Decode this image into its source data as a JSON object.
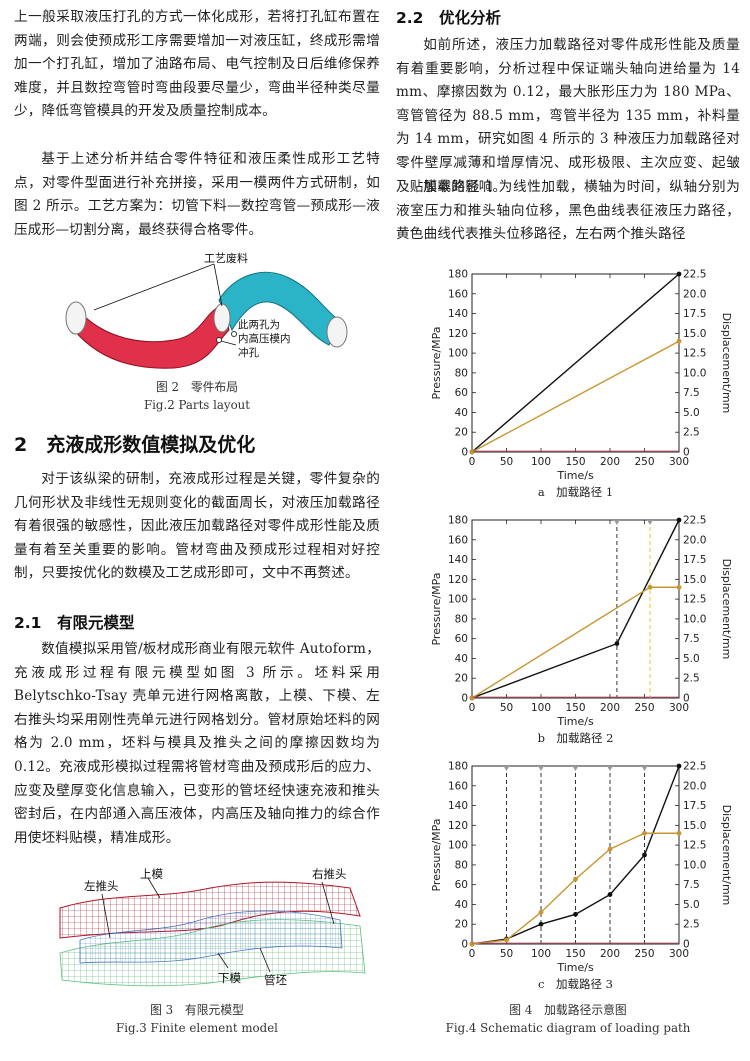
{
  "left": {
    "intro_para": "上一般采取液压打孔的方式一体化成形，若将打孔缸布置在两端，则会使预成形工序需要增加一对液压缸，终成形需增加一个打孔缸，增加了油路布局、电气控制及日后维修保养难度，并且数控弯管时弯曲段要尽量少，弯曲半径种类尽量少，降低弯管模具的开发及质量控制成本。",
    "para2": "基于上述分析并结合零件特征和液压柔性成形工艺特点，对零件型面进行补充拼接，采用一模两件方式研制，如图 2 所示。工艺方案为：切管下料—数控弯管—预成形—液压成形—切割分离，最终获得合格零件。",
    "fig2": {
      "label_waste": "工艺废料",
      "label_holes_1": "此两孔为",
      "label_holes_2": "内高压模内",
      "label_holes_3": "冲孔",
      "caption_cn": "图 2　零件布局",
      "caption_en": "Fig.2 Parts layout"
    },
    "section2_title": "2　充液成形数值模拟及优化",
    "section2_para": "对于该纵梁的研制，充液成形过程是关键，零件复杂的几何形状及非线性无规则变化的截面周长，对液压加载路径有着很强的敏感性，因此液压加载路径对零件成形性能及质量有着至关重要的影响。管材弯曲及预成形过程相对好控制，只要按优化的数模及工艺成形即可，文中不再赘述。",
    "sub21_title": "2.1　有限元模型",
    "sub21_para": "数值模拟采用管/板材成形商业有限元软件 Autoform，充液成形过程有限元模型如图 3 所示。坯料采用 Belytschko-Tsay 壳单元进行网格离散，上模、下模、左右推头均采用刚性壳单元进行网格划分。管材原始坯料的网格为 2.0 mm，坯料与模具及推头之间的摩擦因数均为 0.12。充液成形模拟过程需将管材弯曲及预成形后的应力、应变及壁厚变化信息输入，已变形的管坯经快速充液和推头密封后，在内部通入高压液体，内高压及轴向推力的综合作用使坯料贴模，精准成形。",
    "fig3": {
      "label_upper": "上模",
      "label_right": "右推头",
      "label_left": "左推头",
      "label_lower": "下模",
      "label_tube": "管坯",
      "caption_cn": "图 3　有限元模型",
      "caption_en": "Fig.3 Finite element model"
    }
  },
  "right": {
    "sub22_title": "2.2　优化分析",
    "para1": "如前所述，液压力加载路径对零件成形性能及质量有着重要影响，分析过程中保证端头轴向进给量为 14 mm、摩擦因数为 0.12，最大胀形压力为 180 MPa、弯管管径为 88.5 mm，弯管半径为 135 mm，补料量为 14 mm，研究如图 4 所示的 3 种液压力加载路径对零件壁厚减薄和增厚情况、成形极限、主次应变、起皱及贴膜率的影响。",
    "para2": "加载路径 1 为线性加载，横轴为时间，纵轴分别为液室压力和推头轴向位移，黑色曲线表征液压力路径，黄色曲线代表推头位移路径，左右两个推头路径",
    "fig4_caption_cn": "图 4　加载路径示意图",
    "fig4_caption_en": "Fig.4 Schematic diagram of loading path"
  },
  "chart_data": [
    {
      "type": "line",
      "subcaption": "a　加载路径 1",
      "xlabel": "Time/s",
      "ylabel": "Pressure/MPa",
      "y2label": "Displacement/mm",
      "xlim": [
        0,
        300
      ],
      "ylim": [
        0,
        180
      ],
      "y2lim": [
        0,
        22.5
      ],
      "xticks": [
        "0",
        "50",
        "100",
        "150",
        "200",
        "250",
        "300"
      ],
      "yticks": [
        "0",
        "20",
        "40",
        "60",
        "80",
        "100",
        "120",
        "140",
        "160",
        "180"
      ],
      "y2ticks": [
        "0",
        "2.5",
        "5.0",
        "7.5",
        "10.0",
        "12.5",
        "15.0",
        "17.5",
        "20.0",
        "22.5"
      ],
      "series": [
        {
          "color": "#111111",
          "axis": "left",
          "x": [
            0,
            300
          ],
          "y": [
            0,
            180
          ]
        },
        {
          "color": "#c8962e",
          "axis": "right",
          "x": [
            0,
            300
          ],
          "y": [
            0,
            14
          ]
        }
      ],
      "vlines": []
    },
    {
      "type": "line",
      "subcaption": "b　加载路径 2",
      "xlabel": "Time/s",
      "ylabel": "Pressure/MPa",
      "y2label": "Displacement/mm",
      "xlim": [
        0,
        300
      ],
      "ylim": [
        0,
        180
      ],
      "y2lim": [
        0,
        22.5
      ],
      "xticks": [
        "0",
        "50",
        "100",
        "150",
        "200",
        "250",
        "300"
      ],
      "yticks": [
        "0",
        "20",
        "40",
        "60",
        "80",
        "100",
        "120",
        "140",
        "160",
        "180"
      ],
      "y2ticks": [
        "0",
        "2.5",
        "5.0",
        "7.5",
        "10.0",
        "12.5",
        "15.0",
        "17.5",
        "20.0",
        "22.5"
      ],
      "series": [
        {
          "color": "#111111",
          "axis": "left",
          "x": [
            0,
            210,
            300
          ],
          "y": [
            0,
            55,
            180
          ]
        },
        {
          "color": "#c8962e",
          "axis": "right",
          "x": [
            0,
            258,
            300
          ],
          "y": [
            0,
            14,
            14
          ]
        }
      ],
      "vlines": [
        {
          "x": 210,
          "color": "#333333"
        },
        {
          "x": 258,
          "color": "#e8c630"
        }
      ]
    },
    {
      "type": "line",
      "subcaption": "c　加载路径 3",
      "xlabel": "Time/s",
      "ylabel": "Pressure/MPa",
      "y2label": "Displacement/mm",
      "xlim": [
        0,
        300
      ],
      "ylim": [
        0,
        180
      ],
      "y2lim": [
        0,
        22.5
      ],
      "xticks": [
        "0",
        "50",
        "100",
        "150",
        "200",
        "250",
        "300"
      ],
      "yticks": [
        "0",
        "20",
        "40",
        "60",
        "80",
        "100",
        "120",
        "140",
        "160",
        "180"
      ],
      "y2ticks": [
        "0",
        "2.5",
        "5.0",
        "7.5",
        "10.0",
        "12.5",
        "15.0",
        "17.5",
        "20.0",
        "22.5"
      ],
      "series": [
        {
          "color": "#111111",
          "axis": "left",
          "x": [
            0,
            50,
            100,
            150,
            200,
            250,
            300
          ],
          "y": [
            0,
            5,
            20,
            30,
            50,
            90,
            180
          ]
        },
        {
          "color": "#c8962e",
          "axis": "right",
          "x": [
            0,
            50,
            100,
            150,
            200,
            250,
            300
          ],
          "y": [
            0,
            0.5,
            4,
            8.2,
            12,
            14,
            14
          ]
        }
      ],
      "vlines": [
        {
          "x": 50,
          "color": "#333333"
        },
        {
          "x": 100,
          "color": "#333333"
        },
        {
          "x": 150,
          "color": "#333333"
        },
        {
          "x": 200,
          "color": "#333333"
        },
        {
          "x": 250,
          "color": "#333333"
        }
      ]
    }
  ]
}
